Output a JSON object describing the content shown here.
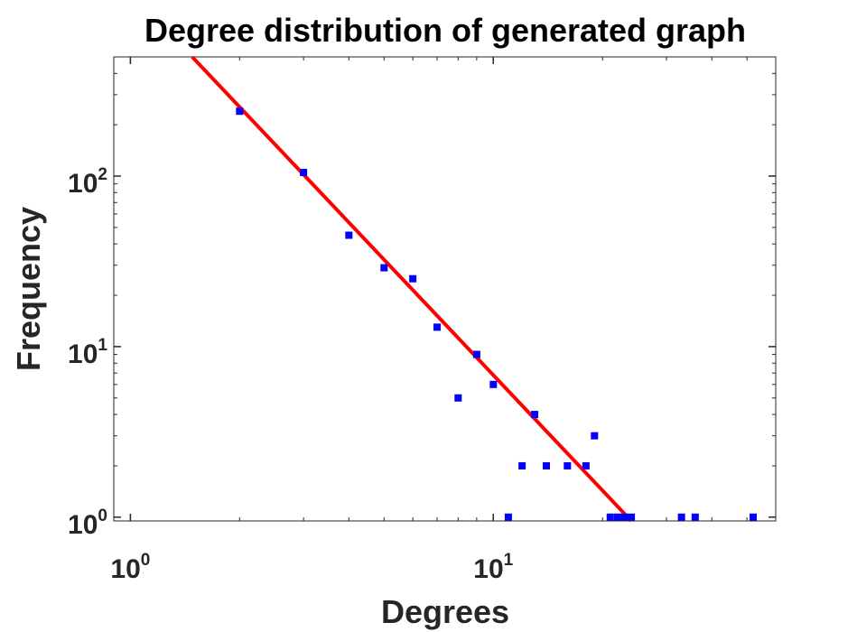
{
  "chart_data": {
    "type": "scatter",
    "title": "Degree distribution of generated graph",
    "xlabel": "Degrees",
    "ylabel": "Frequency",
    "xscale": "log",
    "yscale": "log",
    "xlim": [
      0.9,
      60
    ],
    "ylim": [
      0.95,
      500
    ],
    "grid": false,
    "legend": "none",
    "x_ticks": [
      {
        "value": 1,
        "base": "10",
        "exp": "0"
      },
      {
        "value": 10,
        "base": "10",
        "exp": "1"
      }
    ],
    "y_ticks": [
      {
        "value": 1,
        "base": "10",
        "exp": "0"
      },
      {
        "value": 10,
        "base": "10",
        "exp": "1"
      },
      {
        "value": 100,
        "base": "10",
        "exp": "2"
      }
    ],
    "series": [
      {
        "type": "scatter",
        "color": "#0000ff",
        "x": [
          2,
          3,
          4,
          5,
          6,
          7,
          8,
          9,
          10,
          11,
          12,
          13,
          14,
          16,
          18,
          19,
          21,
          22,
          23,
          24,
          33,
          36,
          52
        ],
        "y": [
          240,
          105,
          45,
          29,
          25,
          13,
          5,
          9,
          6,
          1,
          2,
          4,
          2,
          2,
          2,
          3,
          1,
          1,
          1,
          1,
          1,
          1,
          1
        ]
      },
      {
        "type": "line",
        "color": "#ff0000",
        "x": [
          1.48,
          24
        ],
        "y": [
          500,
          0.95
        ]
      }
    ]
  }
}
